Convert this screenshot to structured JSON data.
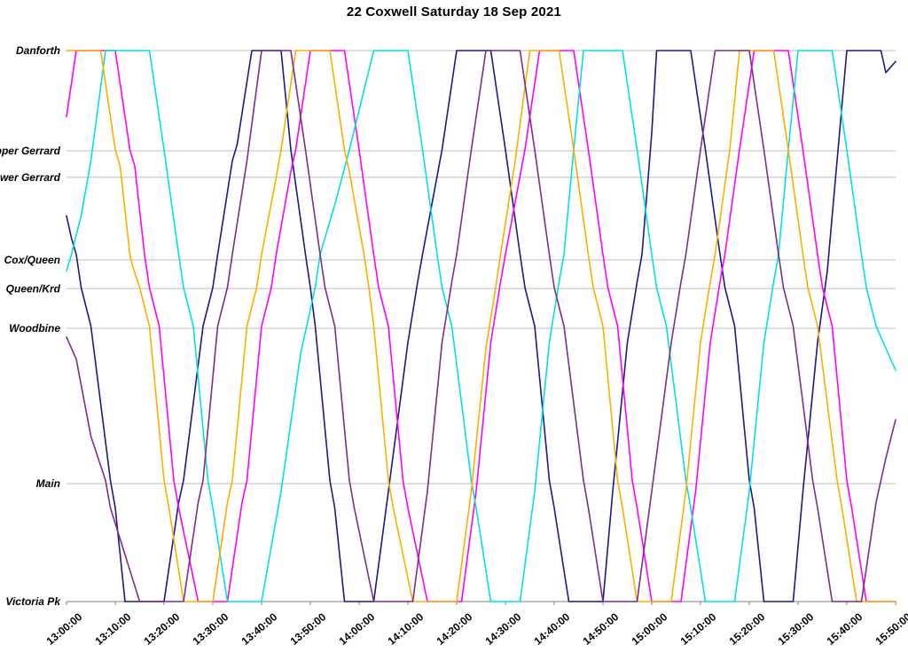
{
  "title": "22 Coxwell Saturday 18 Sep 2021",
  "chart_data": {
    "type": "line",
    "title": "22 Coxwell Saturday 18 Sep 2021",
    "xlabel": "",
    "ylabel": "",
    "grid": "horizontal-only",
    "legend": "none",
    "x_axis": {
      "kind": "time",
      "range_minutes_after_1300": [
        0,
        170
      ],
      "tick_minutes": [
        0,
        10,
        20,
        30,
        40,
        50,
        60,
        70,
        80,
        90,
        100,
        110,
        120,
        130,
        140,
        150,
        160,
        170
      ],
      "tick_labels": [
        "13:00:00",
        "13:10:00",
        "13:20:00",
        "13:30:00",
        "13:40:00",
        "13:50:00",
        "14:00:00",
        "14:10:00",
        "14:20:00",
        "14:30:00",
        "14:40:00",
        "14:50:00",
        "15:00:00",
        "15:10:00",
        "15:20:00",
        "15:30:00",
        "15:40:00",
        "15:50:00"
      ]
    },
    "y_axis": {
      "kind": "route-distance-percent",
      "range": [
        0,
        100
      ],
      "stops": [
        {
          "name": "Danforth",
          "position": 100
        },
        {
          "name": "Upper Gerrard",
          "position": 81.8
        },
        {
          "name": "Lower Gerrard",
          "position": 77.0
        },
        {
          "name": "Cox/Queen",
          "position": 62.0
        },
        {
          "name": "Queen/Krd",
          "position": 56.8
        },
        {
          "name": "Woodbine",
          "position": 49.6
        },
        {
          "name": "Main",
          "position": 21.4
        },
        {
          "name": "Victoria Pk",
          "position": 0
        }
      ]
    },
    "series": [
      {
        "name": "vehicle-navy",
        "color": "#1A1A8C",
        "points": [
          [
            0,
            70
          ],
          [
            1,
            66
          ],
          [
            2,
            63
          ],
          [
            3,
            57
          ],
          [
            5,
            50
          ],
          [
            9,
            22
          ],
          [
            10,
            17
          ],
          [
            12,
            0
          ],
          [
            20,
            0
          ],
          [
            23,
            18
          ],
          [
            24,
            22
          ],
          [
            28,
            50
          ],
          [
            30,
            57
          ],
          [
            31,
            63
          ],
          [
            34,
            80
          ],
          [
            35,
            83
          ],
          [
            38,
            100
          ],
          [
            44,
            100
          ],
          [
            46,
            82
          ],
          [
            49,
            63
          ],
          [
            50,
            57
          ],
          [
            51,
            50
          ],
          [
            54,
            22
          ],
          [
            55,
            17
          ],
          [
            57,
            0
          ],
          [
            63,
            0
          ],
          [
            66,
            20
          ],
          [
            70,
            47
          ],
          [
            72,
            58
          ],
          [
            73,
            63
          ],
          [
            77,
            82
          ],
          [
            80,
            100
          ],
          [
            87,
            100
          ],
          [
            90,
            82
          ],
          [
            93,
            63
          ],
          [
            94,
            57
          ],
          [
            96,
            50
          ],
          [
            99,
            22
          ],
          [
            100,
            17
          ],
          [
            103,
            0
          ],
          [
            110,
            0
          ],
          [
            112,
            20
          ],
          [
            115,
            47
          ],
          [
            117,
            58
          ],
          [
            118,
            63
          ],
          [
            120,
            85
          ],
          [
            121,
            100
          ],
          [
            128,
            100
          ],
          [
            131,
            82
          ],
          [
            134,
            63
          ],
          [
            135,
            57
          ],
          [
            137,
            50
          ],
          [
            140,
            22
          ],
          [
            141,
            17
          ],
          [
            143,
            0
          ],
          [
            149,
            0
          ],
          [
            151,
            20
          ],
          [
            154,
            47
          ],
          [
            156,
            60
          ],
          [
            158,
            80
          ],
          [
            160,
            100
          ],
          [
            167,
            100
          ],
          [
            168,
            96
          ],
          [
            170,
            98
          ]
        ]
      },
      {
        "name": "vehicle-magenta",
        "color": "#FF00FF",
        "points": [
          [
            0,
            88
          ],
          [
            2,
            100
          ],
          [
            10,
            100
          ],
          [
            13,
            82
          ],
          [
            14,
            79
          ],
          [
            16,
            63
          ],
          [
            17,
            57
          ],
          [
            19,
            50
          ],
          [
            22,
            22
          ],
          [
            23,
            17
          ],
          [
            27,
            0
          ],
          [
            33,
            0
          ],
          [
            36,
            18
          ],
          [
            37,
            22
          ],
          [
            40,
            50
          ],
          [
            42,
            57
          ],
          [
            43,
            63
          ],
          [
            46,
            78
          ],
          [
            47,
            82
          ],
          [
            50,
            100
          ],
          [
            57,
            100
          ],
          [
            60,
            82
          ],
          [
            63,
            63
          ],
          [
            64,
            57
          ],
          [
            66,
            50
          ],
          [
            69,
            22
          ],
          [
            70,
            17
          ],
          [
            74,
            0
          ],
          [
            81,
            0
          ],
          [
            84,
            20
          ],
          [
            87,
            47
          ],
          [
            89,
            58
          ],
          [
            90,
            63
          ],
          [
            94,
            82
          ],
          [
            97,
            100
          ],
          [
            104,
            100
          ],
          [
            107,
            82
          ],
          [
            110,
            63
          ],
          [
            111,
            57
          ],
          [
            113,
            50
          ],
          [
            116,
            22
          ],
          [
            117,
            17
          ],
          [
            120,
            0
          ],
          [
            126,
            0
          ],
          [
            129,
            20
          ],
          [
            132,
            47
          ],
          [
            134,
            58
          ],
          [
            135,
            63
          ],
          [
            138,
            82
          ],
          [
            141,
            100
          ],
          [
            148,
            100
          ],
          [
            151,
            82
          ],
          [
            154,
            63
          ],
          [
            155,
            57
          ],
          [
            157,
            50
          ],
          [
            160,
            22
          ],
          [
            161,
            17
          ],
          [
            164,
            0
          ],
          [
            170,
            0
          ]
        ]
      },
      {
        "name": "vehicle-cyan",
        "color": "#00E0E8",
        "points": [
          [
            0,
            60
          ],
          [
            1,
            63
          ],
          [
            3,
            70
          ],
          [
            5,
            80
          ],
          [
            8,
            100
          ],
          [
            17,
            100
          ],
          [
            20,
            82
          ],
          [
            23,
            63
          ],
          [
            24,
            57
          ],
          [
            26,
            50
          ],
          [
            29,
            22
          ],
          [
            30,
            17
          ],
          [
            33,
            0
          ],
          [
            40,
            0
          ],
          [
            44,
            20
          ],
          [
            48,
            45
          ],
          [
            51,
            57
          ],
          [
            52,
            63
          ],
          [
            55,
            72
          ],
          [
            58,
            82
          ],
          [
            63,
            100
          ],
          [
            70,
            100
          ],
          [
            73,
            82
          ],
          [
            76,
            63
          ],
          [
            77,
            57
          ],
          [
            79,
            50
          ],
          [
            83,
            22
          ],
          [
            84,
            17
          ],
          [
            87,
            0
          ],
          [
            93,
            0
          ],
          [
            96,
            20
          ],
          [
            99,
            47
          ],
          [
            101,
            58
          ],
          [
            102,
            63
          ],
          [
            104,
            82
          ],
          [
            106,
            100
          ],
          [
            114,
            100
          ],
          [
            117,
            82
          ],
          [
            120,
            63
          ],
          [
            121,
            57
          ],
          [
            123,
            50
          ],
          [
            127,
            22
          ],
          [
            128,
            17
          ],
          [
            131,
            0
          ],
          [
            137,
            0
          ],
          [
            140,
            20
          ],
          [
            143,
            47
          ],
          [
            145,
            58
          ],
          [
            146,
            63
          ],
          [
            148,
            82
          ],
          [
            150,
            100
          ],
          [
            157,
            100
          ],
          [
            160,
            82
          ],
          [
            163,
            63
          ],
          [
            164,
            57
          ],
          [
            166,
            50
          ],
          [
            170,
            42
          ]
        ]
      },
      {
        "name": "vehicle-orange",
        "color": "#FFAE00",
        "points": [
          [
            0,
            100
          ],
          [
            7,
            100
          ],
          [
            10,
            82
          ],
          [
            11,
            79
          ],
          [
            13,
            63
          ],
          [
            13.5,
            61
          ],
          [
            15,
            57
          ],
          [
            17,
            50
          ],
          [
            20,
            22
          ],
          [
            21,
            17
          ],
          [
            24,
            0
          ],
          [
            30,
            0
          ],
          [
            33,
            18
          ],
          [
            34,
            22
          ],
          [
            37,
            50
          ],
          [
            39,
            57
          ],
          [
            40,
            63
          ],
          [
            43,
            77
          ],
          [
            44,
            82
          ],
          [
            47,
            100
          ],
          [
            54,
            100
          ],
          [
            57,
            82
          ],
          [
            58,
            78
          ],
          [
            61,
            63
          ],
          [
            62,
            57
          ],
          [
            63,
            50
          ],
          [
            66,
            22
          ],
          [
            67,
            17
          ],
          [
            71,
            0
          ],
          [
            80,
            0
          ],
          [
            83,
            20
          ],
          [
            86,
            46
          ],
          [
            88,
            57
          ],
          [
            89,
            63
          ],
          [
            92,
            80
          ],
          [
            95,
            100
          ],
          [
            101,
            100
          ],
          [
            104,
            82
          ],
          [
            107,
            63
          ],
          [
            108,
            57
          ],
          [
            110,
            50
          ],
          [
            113,
            22
          ],
          [
            114,
            17
          ],
          [
            117,
            0
          ],
          [
            124,
            0
          ],
          [
            127,
            20
          ],
          [
            130,
            47
          ],
          [
            132,
            58
          ],
          [
            133,
            63
          ],
          [
            136,
            82
          ],
          [
            138,
            100
          ],
          [
            145,
            100
          ],
          [
            148,
            82
          ],
          [
            151,
            63
          ],
          [
            152,
            57
          ],
          [
            154,
            50
          ],
          [
            158,
            22
          ],
          [
            159,
            17
          ],
          [
            162,
            0
          ],
          [
            170,
            0
          ]
        ]
      },
      {
        "name": "vehicle-purple",
        "color": "#7D2E8D",
        "points": [
          [
            0,
            48
          ],
          [
            2,
            44
          ],
          [
            5,
            30
          ],
          [
            8,
            22
          ],
          [
            9,
            17
          ],
          [
            15,
            0
          ],
          [
            24,
            0
          ],
          [
            27,
            18
          ],
          [
            28,
            22
          ],
          [
            31,
            50
          ],
          [
            33,
            57
          ],
          [
            34,
            63
          ],
          [
            37,
            80
          ],
          [
            40,
            100
          ],
          [
            46,
            100
          ],
          [
            49,
            82
          ],
          [
            52,
            63
          ],
          [
            53,
            57
          ],
          [
            55,
            50
          ],
          [
            58,
            22
          ],
          [
            59,
            17
          ],
          [
            63,
            0
          ],
          [
            71,
            0
          ],
          [
            74,
            20
          ],
          [
            77,
            47
          ],
          [
            79,
            58
          ],
          [
            80,
            63
          ],
          [
            83,
            82
          ],
          [
            86,
            100
          ],
          [
            93,
            100
          ],
          [
            96,
            82
          ],
          [
            99,
            63
          ],
          [
            100,
            57
          ],
          [
            102,
            50
          ],
          [
            106,
            22
          ],
          [
            107,
            17
          ],
          [
            110,
            0
          ],
          [
            117,
            0
          ],
          [
            120,
            20
          ],
          [
            124,
            47
          ],
          [
            126,
            58
          ],
          [
            127,
            63
          ],
          [
            130,
            82
          ],
          [
            133,
            100
          ],
          [
            140,
            100
          ],
          [
            143,
            82
          ],
          [
            146,
            63
          ],
          [
            147,
            57
          ],
          [
            149,
            50
          ],
          [
            153,
            22
          ],
          [
            154,
            17
          ],
          [
            157,
            0
          ],
          [
            163,
            0
          ],
          [
            166,
            18
          ],
          [
            168,
            26
          ],
          [
            170,
            33
          ]
        ]
      }
    ],
    "style": {
      "gridline_color": "#bdbdbd",
      "axis_color": "#7f7f7f",
      "line_width": 1.6
    }
  }
}
